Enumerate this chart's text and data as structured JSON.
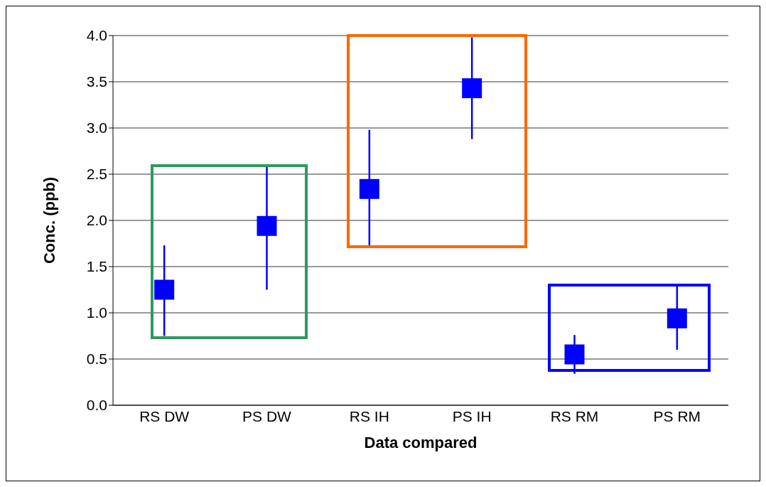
{
  "chart_data": {
    "type": "scatter",
    "xlabel": "Data compared",
    "ylabel": "Conc. (ppb)",
    "categories": [
      "RS DW",
      "PS DW",
      "RS IH",
      "PS IH",
      "RS RM",
      "PS RM"
    ],
    "values": [
      1.25,
      1.94,
      2.34,
      3.43,
      0.55,
      0.94
    ],
    "errors": [
      [
        0.75,
        1.73
      ],
      [
        1.25,
        2.6
      ],
      [
        1.72,
        2.98
      ],
      [
        2.88,
        3.98
      ],
      [
        0.34,
        0.76
      ],
      [
        0.6,
        1.29
      ]
    ],
    "color": "#0000ff",
    "marker": "square",
    "grid": "y",
    "legend": false,
    "ylim": [
      0,
      4
    ],
    "yticks": [
      {
        "value": 0,
        "label": "0.0"
      },
      {
        "value": 0.5,
        "label": "0.5"
      },
      {
        "value": 1,
        "label": "1.0"
      },
      {
        "value": 1.5,
        "label": "1.5"
      },
      {
        "value": 2,
        "label": "2.0"
      },
      {
        "value": 2.5,
        "label": "2.5"
      },
      {
        "value": 3,
        "label": "3.0"
      },
      {
        "value": 3.5,
        "label": "3.5"
      },
      {
        "value": 4,
        "label": "4.0"
      }
    ]
  }
}
